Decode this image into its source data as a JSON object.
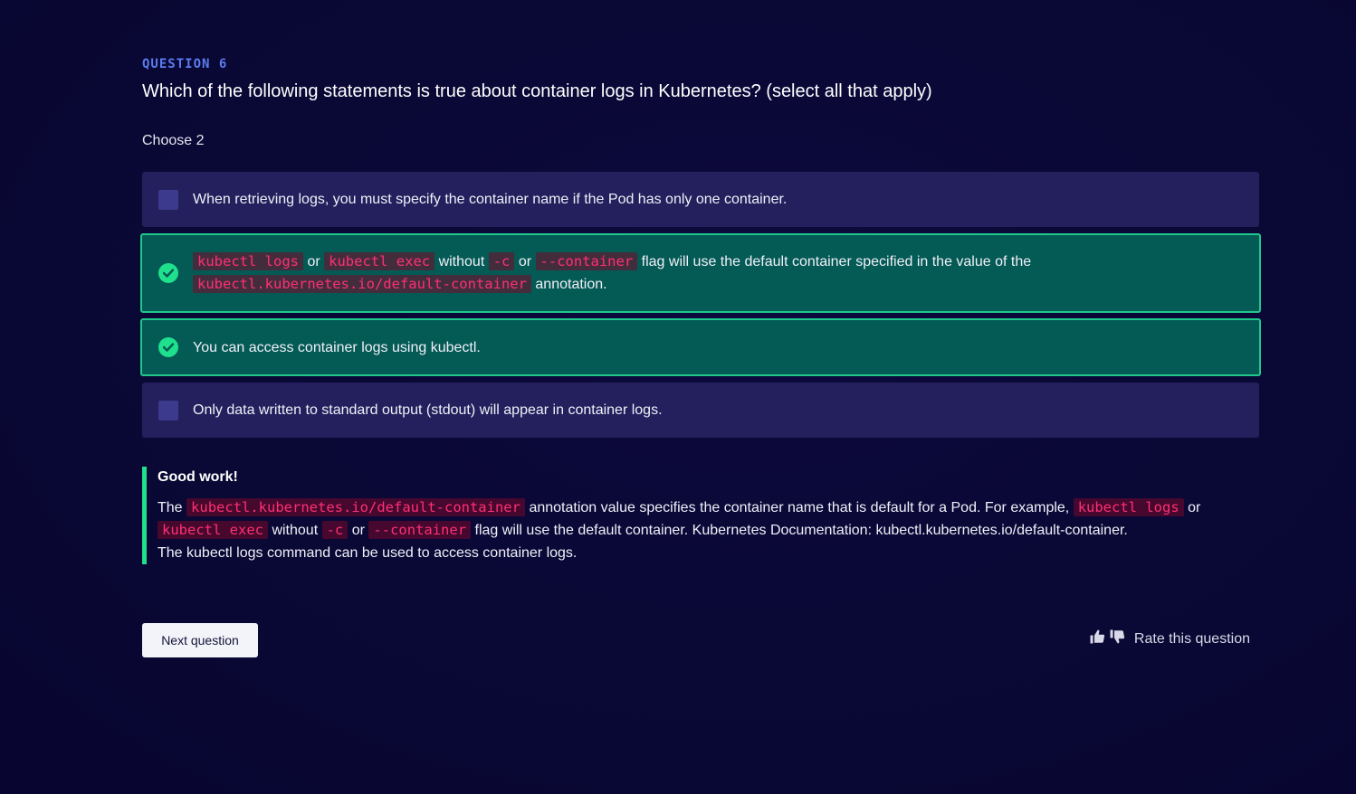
{
  "question": {
    "number_label": "QUESTION 6",
    "text": "Which of the following statements is true about container logs in Kubernetes? (select all that apply)",
    "instruction": "Choose 2"
  },
  "options": [
    {
      "state": "unselected",
      "text": "When retrieving logs, you must specify the container name if the Pod has only one container."
    },
    {
      "state": "correct-selected",
      "code1": "kubectl logs",
      "t1": "or",
      "code2": "kubectl exec",
      "t2": "without",
      "code3": "-c",
      "t3": "or",
      "code4": "--container",
      "t4": "flag will use the default container specified in the value of the",
      "code5": "kubectl.kubernetes.io/default-container",
      "t5": "annotation."
    },
    {
      "state": "correct-selected",
      "text": "You can access container logs using kubectl."
    },
    {
      "state": "unselected",
      "text": "Only data written to standard output (stdout) will appear in container logs."
    }
  ],
  "feedback": {
    "heading": "Good work!",
    "t1": "The",
    "code1": "kubectl.kubernetes.io/default-container",
    "t2": "annotation value specifies the container name that is default for a Pod. For example,",
    "code2": "kubectl logs",
    "t3": "or",
    "code3": "kubectl exec",
    "t4": "without",
    "code4": "-c",
    "t5": "or",
    "code5": "--container",
    "t6": "flag will use the default container. Kubernetes Documentation: kubectl.kubernetes.io/default-container.",
    "line2": "The kubectl logs command can be used to access container logs."
  },
  "footer": {
    "next_label": "Next question",
    "rate_label": "Rate this question",
    "thumbs_up_icon": "thumbs-up-icon",
    "thumbs_down_icon": "thumbs-down-icon"
  },
  "colors": {
    "accent_blue": "#5b7cf0",
    "correct_green": "#1fe08c",
    "correct_bg": "#045a55",
    "option_bg": "#23205d",
    "code_pink": "#ff2f73"
  }
}
